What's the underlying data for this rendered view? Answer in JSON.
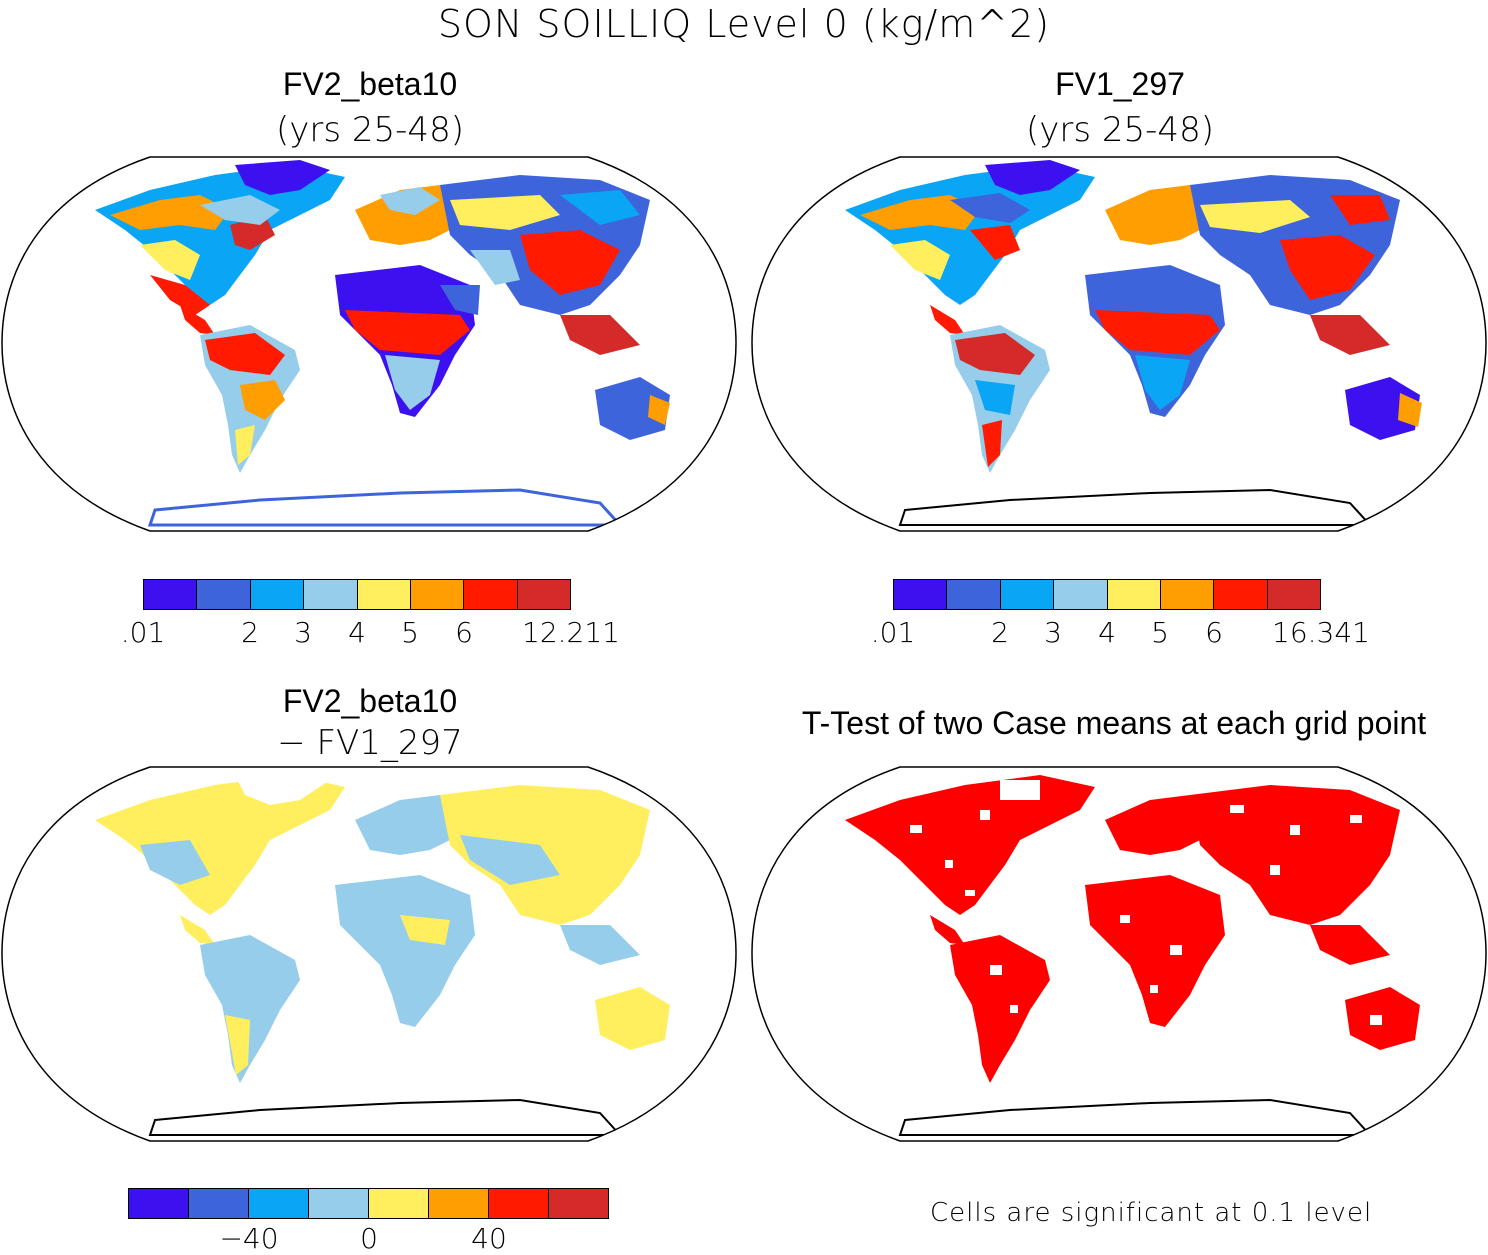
{
  "title": "SON SOILLIQ Level 0 (kg/m^2)",
  "palette": {
    "c1": "#3d10f0",
    "c2": "#3e64dc",
    "c3": "#0aa5f5",
    "c4": "#96cdea",
    "c5": "#ffef5e",
    "c6": "#ff9e00",
    "c7": "#ff1a00",
    "c8": "#d42a2a",
    "signif": "#ff0000"
  },
  "panels": {
    "top_left": {
      "title": "FV2_beta10",
      "subtitle": "(yrs 25-48)",
      "colorbar_labels": [
        ".01",
        "2",
        "3",
        "4",
        "5",
        "6",
        "12.211"
      ]
    },
    "top_right": {
      "title": "FV1_297",
      "subtitle": "(yrs 25-48)",
      "colorbar_labels": [
        ".01",
        "2",
        "3",
        "4",
        "5",
        "6",
        "16.341"
      ]
    },
    "bottom_left": {
      "title": "FV2_beta10",
      "subtitle": "− FV1_297",
      "colorbar_labels": [
        "−40",
        "0",
        "40"
      ]
    },
    "bottom_right": {
      "title": "T-Test of two Case means at each grid point",
      "note": "Cells are significant at 0.1 level"
    }
  },
  "chart_data": {
    "type": "heatmap",
    "projection": "Robinson (world)",
    "variable": "SON SOILLIQ Level 0",
    "units": "kg/m^2",
    "maps": [
      {
        "name": "FV2_beta10",
        "period": "yrs 25-48",
        "levels": [
          ".01",
          "2",
          "3",
          "4",
          "5",
          "6",
          "12.211"
        ]
      },
      {
        "name": "FV1_297",
        "period": "yrs 25-48",
        "levels": [
          ".01",
          "2",
          "3",
          "4",
          "5",
          "6",
          "16.341"
        ]
      },
      {
        "name": "FV2_beta10 - FV1_297",
        "levels": [
          "-40",
          "0",
          "40"
        ]
      },
      {
        "name": "T-Test of two Case means at each grid point",
        "significance": "0.1 level"
      }
    ]
  }
}
